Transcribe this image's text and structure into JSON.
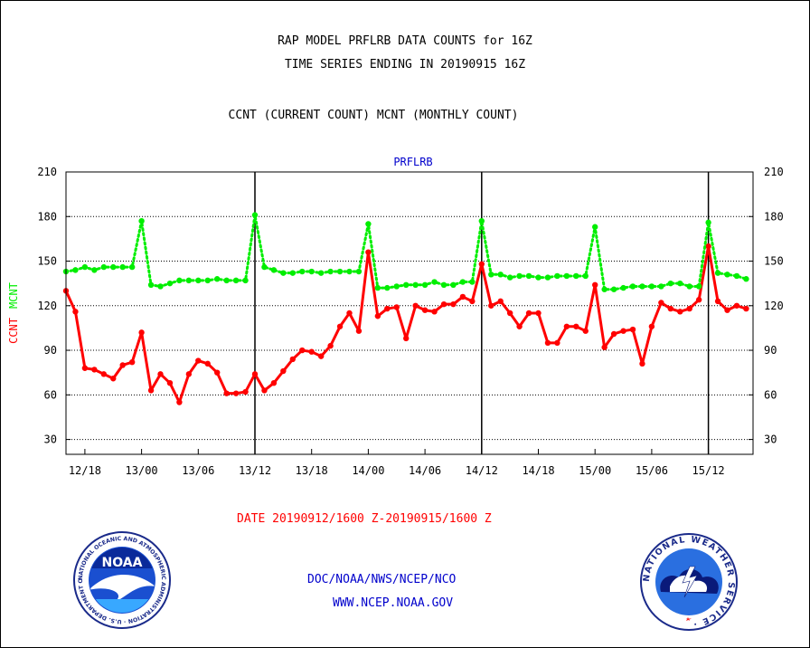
{
  "header": {
    "title1": "RAP MODEL PRFLRB DATA COUNTS for 16Z",
    "title2": "TIME SERIES ENDING IN 20190915 16Z",
    "subtitle": "CCNT (CURRENT COUNT) MCNT (MONTHLY COUNT)"
  },
  "footer": {
    "date_range": "DATE 20190912/1600 Z-20190915/1600 Z",
    "org": "DOC/NOAA/NWS/NCEP/NCO",
    "url": "WWW.NCEP.NOAA.GOV"
  },
  "logos": {
    "noaa_text": "NOAA",
    "noaa_ring": "NATIONAL OCEANIC AND ATMOSPHERIC ADMINISTRATION · U.S. DEPARTMENT OF COMMERCE ·",
    "nws_ring": "NATIONAL WEATHER SERVICE ·"
  },
  "colors": {
    "ccnt": "#ff0000",
    "mcnt": "#00ee00",
    "label_blue": "#0000cc",
    "frame": "#000000"
  },
  "chart_data": {
    "type": "line",
    "title": "PRFLRB",
    "ylabel_left_parts": [
      {
        "text": "CCNT",
        "color": "#ff0000"
      },
      {
        "text": "MCNT",
        "color": "#00ee00"
      }
    ],
    "ylim": [
      20,
      210
    ],
    "yticks": [
      30,
      60,
      90,
      120,
      150,
      180,
      210
    ],
    "x_start_hour": 73,
    "x_end_hour": 146,
    "xticks": [
      {
        "hour": 75,
        "label": "12/18"
      },
      {
        "hour": 81,
        "label": "13/00"
      },
      {
        "hour": 87,
        "label": "13/06"
      },
      {
        "hour": 93,
        "label": "13/12"
      },
      {
        "hour": 99,
        "label": "13/18"
      },
      {
        "hour": 105,
        "label": "14/00"
      },
      {
        "hour": 111,
        "label": "14/06"
      },
      {
        "hour": 117,
        "label": "14/12"
      },
      {
        "hour": 123,
        "label": "14/18"
      },
      {
        "hour": 129,
        "label": "15/00"
      },
      {
        "hour": 135,
        "label": "15/06"
      },
      {
        "hour": 141,
        "label": "15/12"
      }
    ],
    "vlines_hours": [
      93,
      117,
      141
    ],
    "grid": true,
    "series": [
      {
        "name": "CCNT",
        "color": "#ff0000",
        "style": "solid",
        "values": [
          130,
          116,
          78,
          77,
          74,
          71,
          80,
          82,
          102,
          63,
          74,
          68,
          55,
          74,
          83,
          81,
          75,
          61,
          61,
          62,
          74,
          63,
          68,
          76,
          84,
          90,
          89,
          86,
          93,
          106,
          115,
          103,
          156,
          113,
          118,
          119,
          98,
          120,
          117,
          116,
          121,
          121,
          126,
          123,
          148,
          120,
          123,
          115,
          106,
          115,
          115,
          95,
          95,
          106,
          106,
          103,
          134,
          92,
          101,
          103,
          104,
          81,
          106,
          122,
          118,
          116,
          118,
          124,
          160,
          123,
          117,
          120,
          118
        ]
      },
      {
        "name": "MCNT",
        "color": "#00ee00",
        "style": "dotted",
        "values": [
          143,
          144,
          146,
          144,
          146,
          146,
          146,
          146,
          177,
          134,
          133,
          135,
          137,
          137,
          137,
          137,
          138,
          137,
          137,
          137,
          181,
          146,
          144,
          142,
          142,
          143,
          143,
          142,
          143,
          143,
          143,
          143,
          175,
          132,
          132,
          133,
          134,
          134,
          134,
          136,
          134,
          134,
          136,
          136,
          177,
          141,
          141,
          139,
          140,
          140,
          139,
          139,
          140,
          140,
          140,
          140,
          173,
          131,
          131,
          132,
          133,
          133,
          133,
          133,
          135,
          135,
          133,
          133,
          176,
          142,
          141,
          140,
          138
        ]
      }
    ]
  }
}
